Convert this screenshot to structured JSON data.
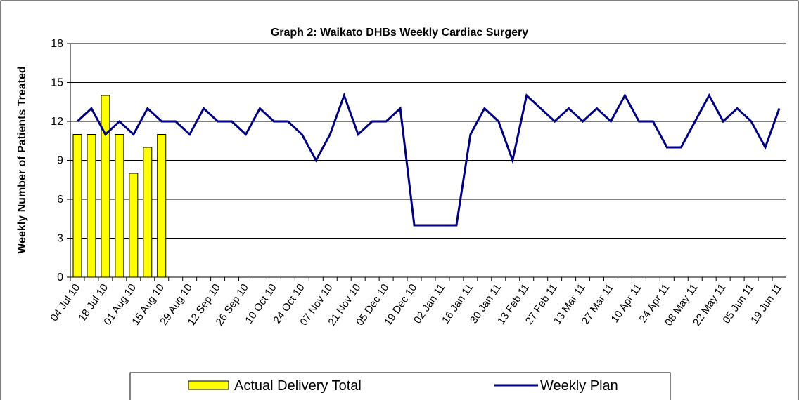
{
  "chart_data": {
    "type": "bar_line",
    "title": "Graph 2: Waikato DHBs Weekly Cardiac Surgery",
    "y_label": "Weekly Number of Patients Treated",
    "categories": [
      "04 Jul 10",
      null,
      "18 Jul 10",
      null,
      "01 Aug 10",
      null,
      "15 Aug 10",
      null,
      "29 Aug 10",
      null,
      "12 Sep 10",
      null,
      "26 Sep 10",
      null,
      "10 Oct 10",
      null,
      "24 Oct 10",
      null,
      "07 Nov 10",
      null,
      "21 Nov 10",
      null,
      "05 Dec 10",
      null,
      "19 Dec 10",
      null,
      "02 Jan 11",
      null,
      "16 Jan 11",
      null,
      "30 Jan 11",
      null,
      "13 Feb 11",
      null,
      "27 Feb 11",
      null,
      "13 Mar 11",
      null,
      "27 Mar 11",
      null,
      "10 Apr 11",
      null,
      "24 Apr 11",
      null,
      "08 May 11",
      null,
      "22 May 11",
      null,
      "05 Jun 11",
      null,
      "19 Jun 11"
    ],
    "series": [
      {
        "name": "Actual Delivery Total",
        "type": "bar",
        "color": "#ffff00",
        "values": [
          11,
          11,
          14,
          11,
          8,
          10,
          11,
          null,
          null,
          null,
          null,
          null,
          null,
          null,
          null,
          null,
          null,
          null,
          null,
          null,
          null,
          null,
          null,
          null,
          null,
          null,
          null,
          null,
          null,
          null,
          null,
          null,
          null,
          null,
          null,
          null,
          null,
          null,
          null,
          null,
          null,
          null,
          null,
          null,
          null,
          null,
          null,
          null,
          null,
          null,
          null
        ]
      },
      {
        "name": "Weekly Plan",
        "type": "line",
        "color": "#000080",
        "values": [
          12,
          13,
          11,
          12,
          11,
          13,
          12,
          12,
          11,
          13,
          12,
          12,
          11,
          13,
          12,
          12,
          11,
          9,
          11,
          14,
          11,
          12,
          12,
          13,
          4,
          4,
          4,
          4,
          11,
          13,
          12,
          9,
          14,
          13,
          12,
          13,
          12,
          13,
          12,
          14,
          12,
          12,
          10,
          10,
          12,
          14,
          12,
          13,
          12,
          10,
          13
        ]
      }
    ],
    "ylim": [
      0,
      18
    ],
    "yticks": [
      0,
      3,
      6,
      9,
      12,
      15,
      18
    ],
    "grid": true,
    "legend": "bottom"
  }
}
